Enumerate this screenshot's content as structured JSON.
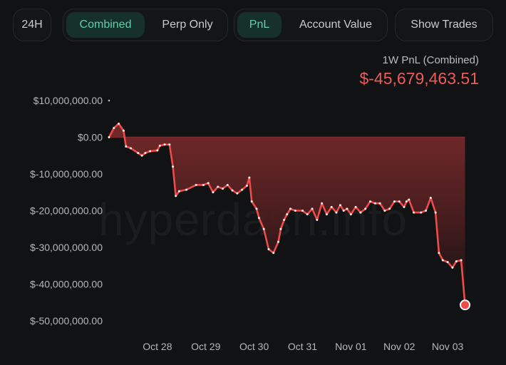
{
  "toolbar": {
    "range_label": "24H",
    "mode_combined": "Combined",
    "mode_perp": "Perp Only",
    "metric_pnl": "PnL",
    "metric_account": "Account Value",
    "show_trades": "Show Trades"
  },
  "summary": {
    "label": "1W PnL (Combined)",
    "value": "$-45,679,463.51"
  },
  "watermark": "hyperdash.info",
  "colors": {
    "accent_green": "#5fd0a6",
    "line_red": "#ef4b4b",
    "negative_text": "#ec5b5b"
  },
  "chart_data": {
    "type": "area",
    "title": "",
    "xlabel": "",
    "ylabel": "",
    "ylim": [
      -50000000,
      10000000
    ],
    "yticks": [
      10000000,
      0,
      -10000000,
      -20000000,
      -30000000,
      -40000000,
      -50000000
    ],
    "ytick_labels": [
      "$10,000,000.00",
      "$0.00",
      "$-10,000,000.00",
      "$-20,000,000.00",
      "$-30,000,000.00",
      "$-40,000,000.00",
      "$-50,000,000.00"
    ],
    "xticks": [
      1,
      2,
      3,
      4,
      5,
      6,
      7
    ],
    "xtick_labels": [
      "Oct 28",
      "Oct 29",
      "Oct 30",
      "Oct 31",
      "Nov 01",
      "Nov 02",
      "Nov 03"
    ],
    "xlim": [
      0.0,
      7.75
    ],
    "grid": false,
    "series": [
      {
        "values": [
          [
            0.0,
            0
          ],
          [
            0.1,
            2500000
          ],
          [
            0.2,
            3700000
          ],
          [
            0.3,
            1800000
          ],
          [
            0.35,
            -2500000
          ],
          [
            0.45,
            -3000000
          ],
          [
            0.6,
            -4300000
          ],
          [
            0.68,
            -5000000
          ],
          [
            0.75,
            -4300000
          ],
          [
            0.85,
            -3800000
          ],
          [
            1.0,
            -3600000
          ],
          [
            1.05,
            -2300000
          ],
          [
            1.15,
            -2000000
          ],
          [
            1.25,
            -2000000
          ],
          [
            1.32,
            -8000000
          ],
          [
            1.38,
            -16000000
          ],
          [
            1.45,
            -14700000
          ],
          [
            1.6,
            -14300000
          ],
          [
            1.8,
            -13000000
          ],
          [
            1.95,
            -13000000
          ],
          [
            2.05,
            -12500000
          ],
          [
            2.15,
            -15000000
          ],
          [
            2.25,
            -13500000
          ],
          [
            2.35,
            -14000000
          ],
          [
            2.45,
            -13000000
          ],
          [
            2.55,
            -14500000
          ],
          [
            2.65,
            -15300000
          ],
          [
            2.75,
            -14300000
          ],
          [
            2.85,
            -13200000
          ],
          [
            2.9,
            -11000000
          ],
          [
            2.95,
            -17500000
          ],
          [
            3.05,
            -19500000
          ],
          [
            3.1,
            -22000000
          ],
          [
            3.2,
            -25000000
          ],
          [
            3.3,
            -30500000
          ],
          [
            3.4,
            -31500000
          ],
          [
            3.5,
            -28500000
          ],
          [
            3.55,
            -25000000
          ],
          [
            3.62,
            -22500000
          ],
          [
            3.68,
            -21000000
          ],
          [
            3.75,
            -19500000
          ],
          [
            3.85,
            -20000000
          ],
          [
            4.0,
            -20000000
          ],
          [
            4.1,
            -21000000
          ],
          [
            4.2,
            -19500000
          ],
          [
            4.3,
            -22500000
          ],
          [
            4.4,
            -18000000
          ],
          [
            4.5,
            -21000000
          ],
          [
            4.6,
            -19000000
          ],
          [
            4.7,
            -20500000
          ],
          [
            4.78,
            -18500000
          ],
          [
            4.85,
            -20000000
          ],
          [
            4.92,
            -19500000
          ],
          [
            5.0,
            -21000000
          ],
          [
            5.1,
            -19000000
          ],
          [
            5.2,
            -20500000
          ],
          [
            5.3,
            -19500000
          ],
          [
            5.4,
            -17500000
          ],
          [
            5.5,
            -18000000
          ],
          [
            5.6,
            -18000000
          ],
          [
            5.7,
            -20000000
          ],
          [
            5.8,
            -19500000
          ],
          [
            5.9,
            -17500000
          ],
          [
            6.0,
            -17500000
          ],
          [
            6.1,
            -19000000
          ],
          [
            6.15,
            -17500000
          ],
          [
            6.2,
            -17000000
          ],
          [
            6.3,
            -20500000
          ],
          [
            6.45,
            -20500000
          ],
          [
            6.55,
            -20000000
          ],
          [
            6.65,
            -16500000
          ],
          [
            6.75,
            -20500000
          ],
          [
            6.82,
            -31500000
          ],
          [
            6.9,
            -33500000
          ],
          [
            7.0,
            -34000000
          ],
          [
            7.1,
            -35500000
          ],
          [
            7.18,
            -33800000
          ],
          [
            7.28,
            -33500000
          ],
          [
            7.36,
            -45679463.51
          ]
        ]
      }
    ]
  }
}
